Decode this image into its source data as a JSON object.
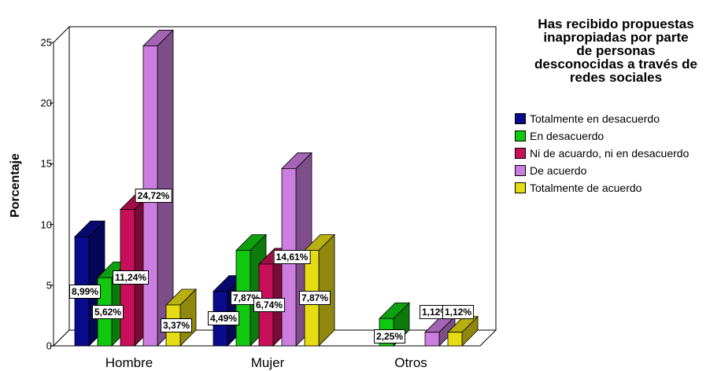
{
  "chart_data": {
    "type": "bar",
    "categories": [
      "Hombre",
      "Mujer",
      "Otros"
    ],
    "ylabel": "Porcentaje",
    "xlabel": "",
    "ylim": [
      0,
      25
    ],
    "yticks": [
      "0",
      "5",
      "10",
      "15",
      "20",
      "25"
    ],
    "legend_title_lines": [
      "Has recibido propuestas",
      "inapropiadas por parte",
      "de personas",
      "desconocidas a través de",
      "redes sociales"
    ],
    "legend_position": "right",
    "series": [
      {
        "name": "Totalmente en desacuerdo",
        "color": "#0a0a8c",
        "values": [
          8.99,
          4.49,
          null
        ],
        "labels": [
          "8,99%",
          "4,49%",
          null
        ]
      },
      {
        "name": "En desacuerdo",
        "color": "#11c811",
        "values": [
          5.62,
          7.87,
          2.25
        ],
        "labels": [
          "5,62%",
          "7,87%",
          "2,25%"
        ]
      },
      {
        "name": "Ni de acuardo, ni en desacuerdo",
        "color": "#c8105a",
        "values": [
          11.24,
          6.74,
          null
        ],
        "labels": [
          "11,24%",
          "6,74%",
          null
        ]
      },
      {
        "name": "De acuerdo",
        "color": "#cc7ee0",
        "values": [
          24.72,
          14.61,
          1.12
        ],
        "labels": [
          "24,72%",
          "14,61%",
          "1,12%"
        ]
      },
      {
        "name": "Totalmente de acuerdo",
        "color": "#e6dc14",
        "values": [
          3.37,
          7.87,
          1.12
        ],
        "labels": [
          "3,37%",
          "7,87%",
          "1,12%"
        ]
      }
    ]
  }
}
